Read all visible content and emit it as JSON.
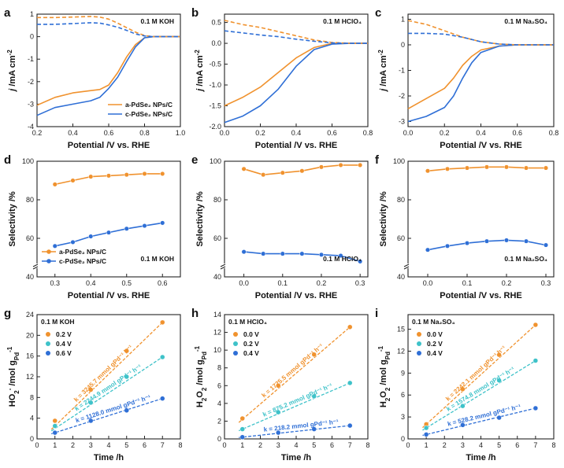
{
  "colors": {
    "orange": "#F0922E",
    "blue": "#2F6FD6",
    "teal": "#3EC2C9",
    "axis": "#222222"
  },
  "chart_data": [
    {
      "id": "a",
      "type": "line",
      "panel_label": "a",
      "note": "0.1 M KOH",
      "xlabel": "Potential /V vs. RHE",
      "ylabel": "j /mA cm⁻²",
      "xlim": [
        0.2,
        1.0
      ],
      "ylim": [
        -4,
        1
      ],
      "xticks": [
        "0.2",
        "0.4",
        "0.6",
        "0.8",
        "1.0"
      ],
      "yticks": [
        "-4",
        "-3",
        "-2",
        "-1",
        "0",
        "1"
      ],
      "legend": [
        "a-PdSe₂ NPs/C",
        "c-PdSe₂ NPs/C"
      ],
      "series": [
        {
          "name": "a-PdSe₂ NPs/C disk",
          "color": "orange",
          "dash": false,
          "x": [
            0.2,
            0.3,
            0.4,
            0.5,
            0.55,
            0.6,
            0.65,
            0.7,
            0.75,
            0.8,
            0.85,
            0.9,
            1.0
          ],
          "y": [
            -3.05,
            -2.7,
            -2.5,
            -2.4,
            -2.35,
            -2.15,
            -1.6,
            -0.9,
            -0.35,
            -0.05,
            0.0,
            0.0,
            0.0
          ]
        },
        {
          "name": "c-PdSe₂ NPs/C disk",
          "color": "blue",
          "dash": false,
          "x": [
            0.2,
            0.3,
            0.4,
            0.5,
            0.55,
            0.6,
            0.65,
            0.7,
            0.75,
            0.8,
            0.85,
            0.9,
            1.0
          ],
          "y": [
            -3.5,
            -3.15,
            -3.0,
            -2.85,
            -2.7,
            -2.3,
            -1.8,
            -1.1,
            -0.45,
            -0.05,
            0.0,
            0.0,
            0.0
          ]
        },
        {
          "name": "a-PdSe₂ NPs/C ring",
          "color": "orange",
          "dash": true,
          "x": [
            0.2,
            0.3,
            0.4,
            0.5,
            0.55,
            0.6,
            0.65,
            0.7,
            0.75,
            0.8,
            0.85,
            0.9,
            1.0
          ],
          "y": [
            0.85,
            0.85,
            0.87,
            0.9,
            0.87,
            0.78,
            0.6,
            0.4,
            0.2,
            0.05,
            0.0,
            0.0,
            0.0
          ]
        },
        {
          "name": "c-PdSe₂ NPs/C ring",
          "color": "blue",
          "dash": true,
          "x": [
            0.2,
            0.3,
            0.4,
            0.5,
            0.55,
            0.6,
            0.65,
            0.7,
            0.75,
            0.8,
            0.85,
            0.9,
            1.0
          ],
          "y": [
            0.55,
            0.55,
            0.58,
            0.62,
            0.6,
            0.52,
            0.42,
            0.28,
            0.12,
            0.03,
            0.0,
            0.0,
            0.0
          ]
        }
      ]
    },
    {
      "id": "b",
      "type": "line",
      "panel_label": "b",
      "note": "0.1 M HClO₄",
      "xlabel": "Potential /V vs. RHE",
      "ylabel": "j /mA cm⁻²",
      "xlim": [
        0.0,
        0.8
      ],
      "ylim": [
        -2.0,
        0.7
      ],
      "xticks": [
        "0.0",
        "0.2",
        "0.4",
        "0.6",
        "0.8"
      ],
      "yticks": [
        "-2.0",
        "-1.5",
        "-1.0",
        "-0.5",
        "0.0",
        "0.5"
      ],
      "series": [
        {
          "name": "a-PdSe₂ NPs/C disk",
          "color": "orange",
          "dash": false,
          "x": [
            0.0,
            0.1,
            0.2,
            0.3,
            0.4,
            0.5,
            0.6,
            0.7,
            0.8
          ],
          "y": [
            -1.5,
            -1.3,
            -1.05,
            -0.7,
            -0.35,
            -0.1,
            0.0,
            0.0,
            0.0
          ]
        },
        {
          "name": "c-PdSe₂ NPs/C disk",
          "color": "blue",
          "dash": false,
          "x": [
            0.0,
            0.1,
            0.2,
            0.3,
            0.4,
            0.5,
            0.6,
            0.7,
            0.8
          ],
          "y": [
            -1.9,
            -1.75,
            -1.5,
            -1.1,
            -0.55,
            -0.15,
            -0.02,
            0.0,
            0.0
          ]
        },
        {
          "name": "a-PdSe₂ NPs/C ring",
          "color": "orange",
          "dash": true,
          "x": [
            0.0,
            0.1,
            0.2,
            0.3,
            0.4,
            0.5,
            0.6,
            0.7,
            0.8
          ],
          "y": [
            0.55,
            0.45,
            0.38,
            0.28,
            0.18,
            0.08,
            0.02,
            0.0,
            0.0
          ]
        },
        {
          "name": "c-PdSe₂ NPs/C ring",
          "color": "blue",
          "dash": true,
          "x": [
            0.0,
            0.1,
            0.2,
            0.3,
            0.4,
            0.5,
            0.6,
            0.7,
            0.8
          ],
          "y": [
            0.3,
            0.25,
            0.2,
            0.16,
            0.1,
            0.05,
            0.01,
            0.0,
            0.0
          ]
        }
      ]
    },
    {
      "id": "c",
      "type": "line",
      "panel_label": "c",
      "note": "0.1 M Na₂SO₄",
      "xlabel": "Potential /V vs. RHE",
      "ylabel": "j /mA cm⁻²",
      "xlim": [
        0.0,
        0.8
      ],
      "ylim": [
        -3.2,
        1.2
      ],
      "xticks": [
        "0.0",
        "0.2",
        "0.4",
        "0.6",
        "0.8"
      ],
      "yticks": [
        "-3",
        "-2",
        "-1",
        "0",
        "1"
      ],
      "series": [
        {
          "name": "a-PdSe₂ NPs/C disk",
          "color": "orange",
          "dash": false,
          "x": [
            0.0,
            0.1,
            0.2,
            0.25,
            0.3,
            0.35,
            0.4,
            0.5,
            0.6,
            0.7,
            0.8
          ],
          "y": [
            -2.5,
            -2.1,
            -1.7,
            -1.3,
            -0.8,
            -0.45,
            -0.2,
            -0.05,
            0.0,
            0.0,
            0.0
          ]
        },
        {
          "name": "c-PdSe₂ NPs/C disk",
          "color": "blue",
          "dash": false,
          "x": [
            0.0,
            0.1,
            0.2,
            0.25,
            0.3,
            0.35,
            0.4,
            0.5,
            0.6,
            0.7,
            0.8
          ],
          "y": [
            -3.0,
            -2.8,
            -2.45,
            -2.0,
            -1.3,
            -0.7,
            -0.3,
            -0.05,
            0.0,
            0.0,
            0.0
          ]
        },
        {
          "name": "a-PdSe₂ NPs/C ring",
          "color": "orange",
          "dash": true,
          "x": [
            0.0,
            0.1,
            0.2,
            0.3,
            0.4,
            0.5,
            0.6,
            0.7,
            0.8
          ],
          "y": [
            0.95,
            0.8,
            0.55,
            0.3,
            0.12,
            0.03,
            0.0,
            0.0,
            0.0
          ]
        },
        {
          "name": "c-PdSe₂ NPs/C ring",
          "color": "blue",
          "dash": true,
          "x": [
            0.0,
            0.1,
            0.2,
            0.3,
            0.4,
            0.5,
            0.6,
            0.7,
            0.8
          ],
          "y": [
            0.45,
            0.45,
            0.42,
            0.3,
            0.12,
            0.03,
            0.0,
            0.0,
            0.0
          ]
        }
      ]
    },
    {
      "id": "d",
      "type": "line",
      "panel_label": "d",
      "note": "0.1 M KOH",
      "xlabel": "Potential /V vs. RHE",
      "ylabel": "Selectivity /%",
      "xlim": [
        0.25,
        0.65
      ],
      "ylim": [
        40,
        100
      ],
      "xticks": [
        "0.3",
        "0.4",
        "0.5",
        "0.6"
      ],
      "yticks": [
        "40",
        "60",
        "80",
        "100"
      ],
      "legend": [
        "a-PdSe₂ NPs/C",
        "c-PdSe₂ NPs/C"
      ],
      "series": [
        {
          "name": "a-PdSe₂ NPs/C",
          "color": "orange",
          "x": [
            0.3,
            0.35,
            0.4,
            0.45,
            0.5,
            0.55,
            0.6
          ],
          "y": [
            88,
            90,
            92,
            92.5,
            93,
            93.5,
            93.5
          ]
        },
        {
          "name": "c-PdSe₂ NPs/C",
          "color": "blue",
          "x": [
            0.3,
            0.35,
            0.4,
            0.45,
            0.5,
            0.55,
            0.6
          ],
          "y": [
            56,
            58,
            61,
            63,
            65,
            66.5,
            68
          ]
        }
      ]
    },
    {
      "id": "e",
      "type": "line",
      "panel_label": "e",
      "note": "0.1 M HClO₄",
      "xlabel": "Potential /V vs. RHE",
      "ylabel": "Selectivity /%",
      "xlim": [
        -0.05,
        0.32
      ],
      "ylim": [
        40,
        100
      ],
      "xticks": [
        "0.0",
        "0.1",
        "0.2",
        "0.3"
      ],
      "yticks": [
        "40",
        "60",
        "80",
        "100"
      ],
      "series": [
        {
          "name": "a-PdSe₂ NPs/C",
          "color": "orange",
          "x": [
            0.0,
            0.05,
            0.1,
            0.15,
            0.2,
            0.25,
            0.3
          ],
          "y": [
            96,
            93,
            94,
            95,
            97,
            98,
            98
          ]
        },
        {
          "name": "c-PdSe₂ NPs/C",
          "color": "blue",
          "x": [
            0.0,
            0.05,
            0.1,
            0.15,
            0.2,
            0.25,
            0.3
          ],
          "y": [
            53,
            52,
            52,
            52,
            51.5,
            51,
            48
          ]
        }
      ]
    },
    {
      "id": "f",
      "type": "line",
      "panel_label": "f",
      "note": "0.1 M Na₂SO₄",
      "xlabel": "Potential /V vs. RHE",
      "ylabel": "Selectivity /%",
      "xlim": [
        -0.05,
        0.32
      ],
      "ylim": [
        40,
        100
      ],
      "xticks": [
        "0.0",
        "0.1",
        "0.2",
        "0.3"
      ],
      "yticks": [
        "40",
        "60",
        "80",
        "100"
      ],
      "series": [
        {
          "name": "a-PdSe₂ NPs/C",
          "color": "orange",
          "x": [
            0.0,
            0.05,
            0.1,
            0.15,
            0.2,
            0.25,
            0.3
          ],
          "y": [
            95,
            96,
            96.5,
            97,
            97,
            96.5,
            96.5
          ]
        },
        {
          "name": "c-PdSe₂ NPs/C",
          "color": "blue",
          "x": [
            0.0,
            0.05,
            0.1,
            0.15,
            0.2,
            0.25,
            0.3
          ],
          "y": [
            54,
            56,
            57.5,
            58.5,
            59,
            58.5,
            56.5
          ]
        }
      ]
    },
    {
      "id": "g",
      "type": "scatter",
      "panel_label": "g",
      "note": "0.1 M KOH",
      "xlabel": "Time /h",
      "ylabel": "HO₂⁻ /mol gPd⁻¹",
      "xlim": [
        0,
        8
      ],
      "ylim": [
        0,
        24
      ],
      "xticks": [
        "0",
        "1",
        "2",
        "3",
        "4",
        "5",
        "6",
        "7",
        "8"
      ],
      "yticks": [
        "0",
        "4",
        "8",
        "12",
        "16",
        "20",
        "24"
      ],
      "series": [
        {
          "name": "0.2 V",
          "color": "orange",
          "x": [
            1,
            3,
            5,
            7
          ],
          "y": [
            3.5,
            9.5,
            17,
            22.5
          ],
          "fit": [
            2.5,
            22.5
          ],
          "label": "k = 3245.7 mmol gPd⁻¹ h⁻¹"
        },
        {
          "name": "0.4 V",
          "color": "teal",
          "x": [
            1,
            3,
            5,
            7
          ],
          "y": [
            2.5,
            7,
            12,
            15.8
          ],
          "fit": [
            2,
            15.8
          ],
          "label": "k = 2244.9 mmol gPd⁻¹ h⁻¹"
        },
        {
          "name": "0.6 V",
          "color": "blue",
          "x": [
            1,
            3,
            5,
            7
          ],
          "y": [
            1.2,
            3.5,
            5.5,
            7.8
          ],
          "fit": [
            1.2,
            7.8
          ],
          "label": "k = 1128.0 mmol gPd⁻¹ h⁻¹"
        }
      ]
    },
    {
      "id": "h",
      "type": "scatter",
      "panel_label": "h",
      "note": "0.1 M HClO₄",
      "xlabel": "Time /h",
      "ylabel": "H₂O₂ /mol gPd⁻¹",
      "xlim": [
        0,
        8
      ],
      "ylim": [
        0,
        14
      ],
      "xticks": [
        "0",
        "1",
        "2",
        "3",
        "4",
        "5",
        "6",
        "7",
        "8"
      ],
      "yticks": [
        "0",
        "2",
        "4",
        "6",
        "8",
        "10",
        "12",
        "14"
      ],
      "series": [
        {
          "name": "0.0 V",
          "color": "orange",
          "x": [
            1,
            3,
            5,
            7
          ],
          "y": [
            2.3,
            6,
            9.5,
            12.6
          ],
          "fit": [
            2.2,
            12.6
          ],
          "label": "k = 1725.5 mmol gPd⁻¹ h⁻¹"
        },
        {
          "name": "0.2 V",
          "color": "teal",
          "x": [
            1,
            3,
            5,
            7
          ],
          "y": [
            1.1,
            3,
            4.8,
            6.3
          ],
          "fit": [
            1.1,
            6.3
          ],
          "label": "k = 875.2 mmol gPd⁻¹ h⁻¹"
        },
        {
          "name": "0.4 V",
          "color": "blue",
          "x": [
            1,
            3,
            5,
            7
          ],
          "y": [
            0.2,
            0.7,
            1.1,
            1.5
          ],
          "fit": [
            0.2,
            1.5
          ],
          "label": "k = 218.2 mmol gPd⁻¹ h⁻¹"
        }
      ]
    },
    {
      "id": "i",
      "type": "scatter",
      "panel_label": "i",
      "note": "0.1 M Na₂SO₄",
      "xlabel": "Time /h",
      "ylabel": "H₂O₂ /mol gPd⁻¹",
      "xlim": [
        0,
        8
      ],
      "ylim": [
        0,
        17
      ],
      "xticks": [
        "0",
        "1",
        "2",
        "3",
        "4",
        "5",
        "6",
        "7",
        "8"
      ],
      "yticks": [
        "0",
        "3",
        "6",
        "9",
        "12",
        "15"
      ],
      "series": [
        {
          "name": "0.0 V",
          "color": "orange",
          "x": [
            1,
            3,
            5,
            7
          ],
          "y": [
            2,
            6.8,
            11.5,
            15.6
          ],
          "fit": [
            2,
            15.6
          ],
          "label": "k = 2242.1 mmol gPd⁻¹ h⁻¹"
        },
        {
          "name": "0.2 V",
          "color": "teal",
          "x": [
            1,
            3,
            5,
            7
          ],
          "y": [
            1.5,
            4.5,
            8,
            10.7
          ],
          "fit": [
            1.5,
            10.7
          ],
          "label": "k = 1574.8 mmol gPd⁻¹ h⁻¹"
        },
        {
          "name": "0.4 V",
          "color": "blue",
          "x": [
            1,
            3,
            5,
            7
          ],
          "y": [
            0.6,
            1.9,
            2.9,
            4.2
          ],
          "fit": [
            0.6,
            4.2
          ],
          "label": "k = 528.2 mmol gPd⁻¹ h⁻¹"
        }
      ]
    }
  ]
}
